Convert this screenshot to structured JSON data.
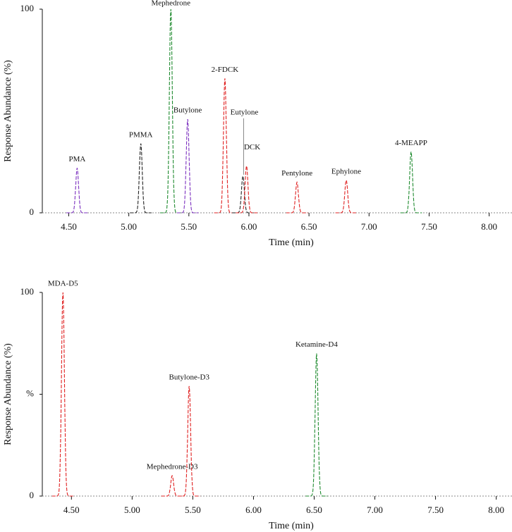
{
  "chart_data": [
    {
      "type": "chromatogram",
      "xlabel": "Time (min)",
      "ylabel": "Response Abundance (%)",
      "xlim": [
        4.28,
        8.19
      ],
      "ylim": [
        0,
        100
      ],
      "xticks": [
        {
          "value": 4.5,
          "label": "4.50"
        },
        {
          "value": 5.0,
          "label": "5.00"
        },
        {
          "value": 5.5,
          "label": "5.50"
        },
        {
          "value": 6.0,
          "label": "6.00"
        },
        {
          "value": 6.5,
          "label": "6.50"
        },
        {
          "value": 7.0,
          "label": "7.00"
        },
        {
          "value": 7.5,
          "label": "7.50"
        },
        {
          "value": 8.0,
          "label": "8.00"
        }
      ],
      "yticks": [
        0,
        100
      ],
      "series": [
        {
          "name": "PMA",
          "color": "#7b2fbf",
          "x": [
            4.57
          ],
          "values": [
            22
          ]
        },
        {
          "name": "PMMA",
          "color": "#222222",
          "x": [
            5.1
          ],
          "values": [
            34
          ]
        },
        {
          "name": "Mephedrone",
          "color": "#1e8a2e",
          "x": [
            5.35
          ],
          "values": [
            100
          ]
        },
        {
          "name": "Butylone",
          "color": "#7b2fbf",
          "x": [
            5.49
          ],
          "values": [
            46
          ]
        },
        {
          "name": "2-FDCK",
          "color": "#e02020",
          "x": [
            5.8
          ],
          "values": [
            66
          ]
        },
        {
          "name": "Eutylone",
          "color": "#222222",
          "x": [
            5.95
          ],
          "values": [
            18
          ]
        },
        {
          "name": "DCK",
          "color": "#e02020",
          "x": [
            5.98
          ],
          "values": [
            23
          ]
        },
        {
          "name": "Pentylone",
          "color": "#e02020",
          "x": [
            6.4
          ],
          "values": [
            15
          ]
        },
        {
          "name": "Ephylone",
          "color": "#e02020",
          "x": [
            6.81
          ],
          "values": [
            16
          ]
        },
        {
          "name": "4-MEAPP",
          "color": "#1e8a2e",
          "x": [
            7.35
          ],
          "values": [
            30
          ]
        }
      ]
    },
    {
      "type": "chromatogram",
      "xlabel": "Time (min)",
      "ylabel": "Response Abundance (%)",
      "xlim": [
        4.26,
        8.13
      ],
      "ylim": [
        0,
        100
      ],
      "xticks": [
        {
          "value": 4.5,
          "label": "4.50"
        },
        {
          "value": 5.0,
          "label": "5.00"
        },
        {
          "value": 5.5,
          "label": "5.50"
        },
        {
          "value": 6.0,
          "label": "6.00"
        },
        {
          "value": 6.5,
          "label": "6.50"
        },
        {
          "value": 7.0,
          "label": "7.00"
        },
        {
          "value": 7.5,
          "label": "7.50"
        },
        {
          "value": 8.0,
          "label": "8.00"
        }
      ],
      "yticks": [
        0,
        {
          "value": 50,
          "label": "%"
        },
        100
      ],
      "series": [
        {
          "name": "MDA-D5",
          "color": "#e02020",
          "x": [
            4.43
          ],
          "values": [
            100
          ]
        },
        {
          "name": "Mephedrone-D3",
          "color": "#e02020",
          "x": [
            5.33
          ],
          "values": [
            10
          ]
        },
        {
          "name": "Butylone-D3",
          "color": "#e02020",
          "x": [
            5.47
          ],
          "values": [
            54
          ]
        },
        {
          "name": "Ketamine-D4",
          "color": "#1e8a2e",
          "x": [
            6.52
          ],
          "values": [
            70
          ]
        }
      ]
    }
  ]
}
